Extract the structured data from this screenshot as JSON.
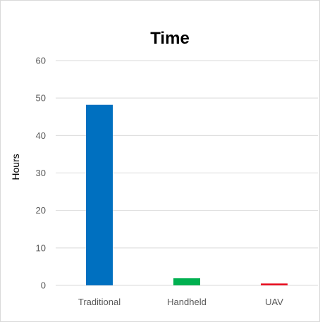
{
  "chart_data": {
    "type": "bar",
    "title": "Time",
    "xlabel": "",
    "ylabel": "Hours",
    "categories": [
      "Traditional",
      "Handheld",
      "UAV"
    ],
    "values": [
      48.2,
      1.9,
      0.5
    ],
    "colors": [
      "#0070C0",
      "#00B050",
      "#E81123"
    ],
    "ylim": [
      0,
      60
    ],
    "yticks": [
      "0",
      "10",
      "20",
      "30",
      "40",
      "50",
      "60"
    ],
    "grid": true,
    "legend": "none"
  }
}
